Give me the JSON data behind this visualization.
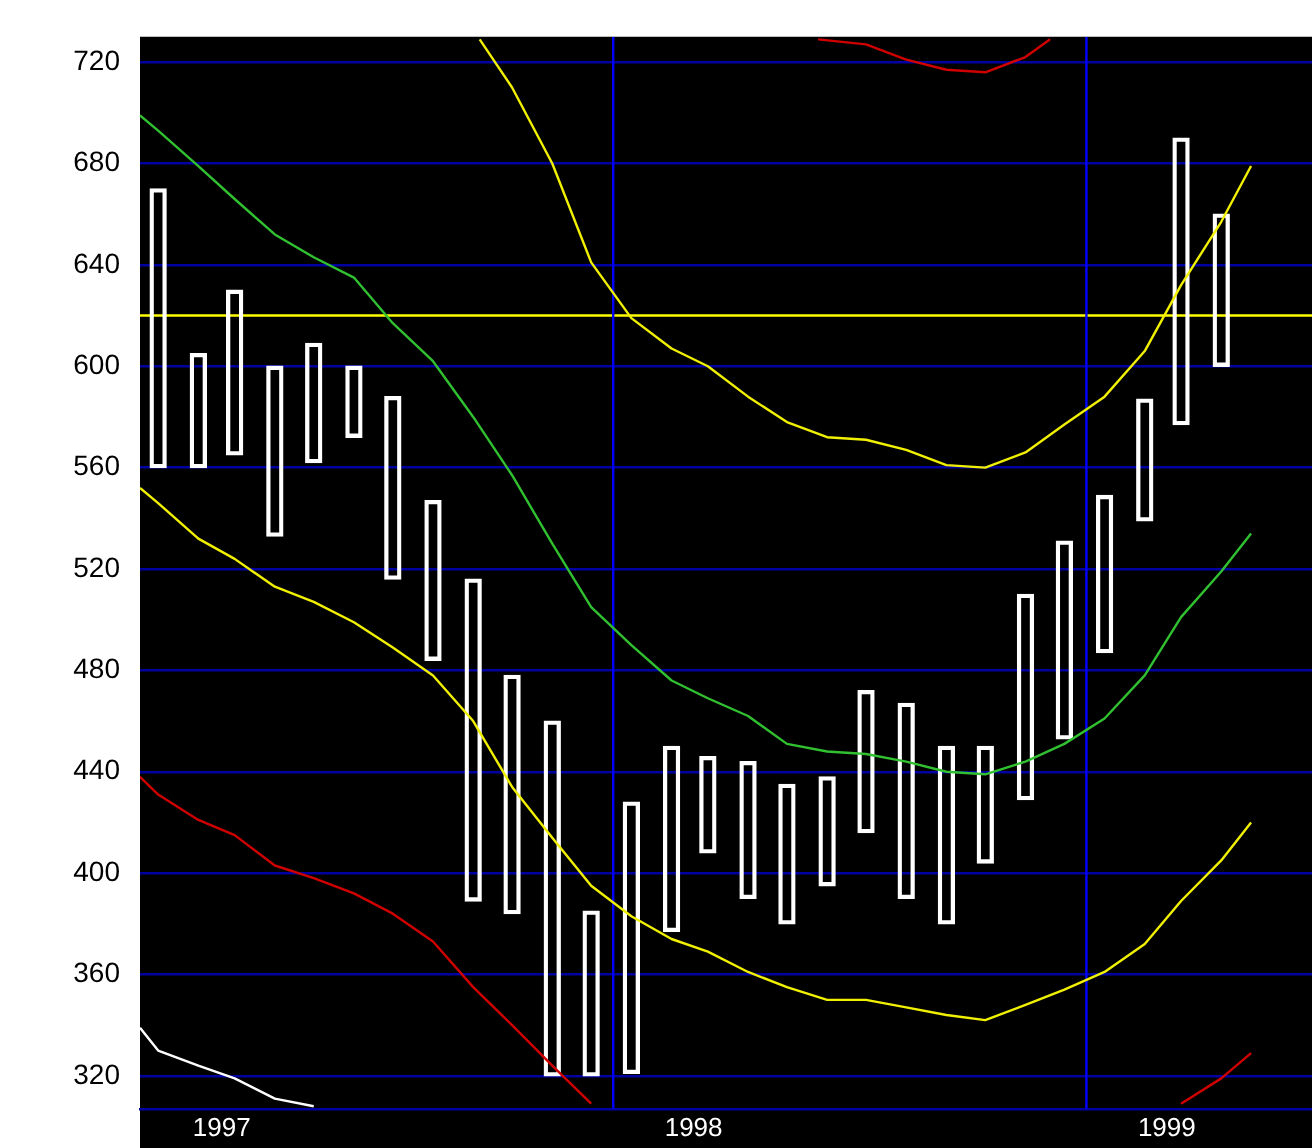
{
  "chart_data": {
    "type": "line",
    "xlim": [
      "1997-01-01",
      "1999-06-24"
    ],
    "ylim": [
      307,
      730
    ],
    "xticks": [
      {
        "value": "1997-03-05",
        "label": "1997"
      },
      {
        "value": "1998-03-04",
        "label": "1998"
      },
      {
        "value": "1999-03-04",
        "label": "1999"
      }
    ],
    "yticks": [
      320,
      360,
      400,
      440,
      480,
      520,
      560,
      600,
      640,
      680,
      720
    ],
    "grid": "y",
    "ref_lines": [
      {
        "axis": "y",
        "value": 620,
        "color": "#ffff00"
      },
      {
        "axis": "x",
        "value": "1998-01-01",
        "color": "#0000ff"
      },
      {
        "axis": "x",
        "value": "1999-01-01",
        "color": "#0000ff"
      }
    ],
    "series": [
      {
        "type": "bar",
        "color": "#ffffff",
        "x": [
          "1997-01-15",
          "1997-02-15",
          "1997-03-15",
          "1997-04-15",
          "1997-05-15",
          "1997-06-15",
          "1997-07-15",
          "1997-08-15",
          "1997-09-15",
          "1997-10-15",
          "1997-11-15",
          "1997-12-15",
          "1998-01-15",
          "1998-02-15",
          "1998-03-15",
          "1998-04-15",
          "1998-05-15",
          "1998-06-15",
          "1998-07-15",
          "1998-08-15",
          "1998-09-15",
          "1998-10-15",
          "1998-11-15",
          "1998-12-15",
          "1999-01-15",
          "1999-02-15",
          "1999-03-15",
          "1999-04-15"
        ],
        "base": [
          560,
          560,
          565,
          533,
          562,
          572,
          516,
          484,
          389,
          384,
          320,
          320,
          321,
          377,
          408,
          390,
          380,
          395,
          416,
          390,
          380,
          404,
          429,
          453,
          487,
          539,
          577,
          600
        ],
        "values": [
          110,
          45,
          65,
          67,
          47,
          28,
          72,
          63,
          127,
          94,
          140,
          65,
          107,
          73,
          38,
          54,
          55,
          43,
          56,
          77,
          70,
          46,
          81,
          78,
          62,
          48,
          113,
          60
        ]
      },
      {
        "color": "#30c030",
        "x": [
          "1997-01-01",
          "1997-01-15",
          "1997-02-15",
          "1997-03-15",
          "1997-04-15",
          "1997-05-15",
          "1997-06-15",
          "1997-07-15",
          "1997-08-15",
          "1997-09-15",
          "1997-10-15",
          "1997-11-15",
          "1997-12-15",
          "1998-01-15",
          "1998-02-15",
          "1998-03-15",
          "1998-04-15",
          "1998-05-15",
          "1998-06-15",
          "1998-07-15",
          "1998-08-15",
          "1998-09-15",
          "1998-10-15",
          "1998-11-15",
          "1998-12-15",
          "1999-01-15",
          "1999-02-15",
          "1999-03-15",
          "1999-04-15",
          "1999-05-08"
        ],
        "values": [
          699,
          693,
          679,
          666,
          652,
          643,
          635,
          617,
          602,
          580,
          557,
          530,
          505,
          490,
          476,
          469,
          462,
          451,
          448,
          447,
          444,
          440,
          439,
          444,
          451,
          461,
          478,
          501,
          519,
          534
        ]
      },
      {
        "color": "#f0f000",
        "x": [
          "1997-09-20",
          "1997-10-15",
          "1997-11-15",
          "1997-12-15",
          "1998-01-15",
          "1998-02-15",
          "1998-03-15",
          "1998-04-15",
          "1998-05-15",
          "1998-06-15",
          "1998-07-15",
          "1998-08-15",
          "1998-09-15",
          "1998-10-15",
          "1998-11-15",
          "1998-12-15",
          "1999-01-15",
          "1999-02-15",
          "1999-03-15",
          "1999-04-15",
          "1999-05-08"
        ],
        "values": [
          729,
          710,
          680,
          641,
          619,
          607,
          600,
          588,
          578,
          572,
          571,
          567,
          561,
          560,
          566,
          577,
          588,
          606,
          632,
          657,
          679
        ]
      },
      {
        "color": "#f0f000",
        "x": [
          "1997-01-01",
          "1997-01-15",
          "1997-02-15",
          "1997-03-15",
          "1997-04-15",
          "1997-05-15",
          "1997-06-15",
          "1997-07-15",
          "1997-08-15",
          "1997-09-15",
          "1997-10-15",
          "1997-11-15",
          "1997-12-15",
          "1998-01-15",
          "1998-02-15",
          "1998-03-15",
          "1998-04-15",
          "1998-05-15",
          "1998-06-15",
          "1998-07-15",
          "1998-08-15",
          "1998-09-15",
          "1998-10-15",
          "1998-11-15",
          "1998-12-15",
          "1999-01-15",
          "1999-02-15",
          "1999-03-15",
          "1999-04-15",
          "1999-05-08"
        ],
        "values": [
          552,
          546,
          532,
          524,
          513,
          507,
          499,
          489,
          478,
          460,
          434,
          414,
          395,
          383,
          374,
          369,
          361,
          355,
          350,
          350,
          347,
          344,
          342,
          348,
          354,
          361,
          372,
          389,
          405,
          420
        ]
      },
      {
        "color": "#d00000",
        "x": [
          "1998-06-08",
          "1998-07-15",
          "1998-08-15",
          "1998-09-15",
          "1998-10-15",
          "1998-11-15",
          "1998-12-04"
        ],
        "values": [
          729,
          727,
          721,
          717,
          716,
          722,
          729
        ]
      },
      {
        "color": "#d00000",
        "x": [
          "1997-01-01",
          "1997-01-15",
          "1997-02-15",
          "1997-03-15",
          "1997-04-15",
          "1997-05-15",
          "1997-06-15",
          "1997-07-15",
          "1997-08-15",
          "1997-09-15",
          "1997-10-15",
          "1997-11-15",
          "1997-12-15",
          "1998-06-15",
          "1999-03-15",
          "1999-04-15",
          "1999-05-08"
        ],
        "values": [
          438,
          431,
          421,
          415,
          403,
          398,
          392,
          384,
          373,
          355,
          340,
          324,
          309,
          null,
          309,
          319,
          329
        ]
      },
      {
        "color": "#ffffff",
        "x": [
          "1997-01-01",
          "1997-01-15",
          "1997-02-15",
          "1997-03-15",
          "1997-04-15",
          "1997-05-15"
        ],
        "values": [
          339,
          330,
          324,
          319,
          311,
          308
        ]
      }
    ]
  }
}
